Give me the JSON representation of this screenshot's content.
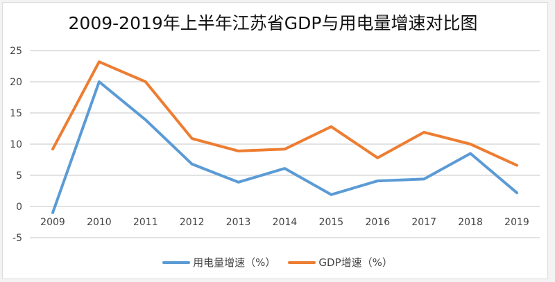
{
  "chart_data": {
    "type": "line",
    "title": "2009-2019年上半年江苏省GDP与用电量增速对比图",
    "xlabel": "",
    "ylabel": "",
    "categories": [
      "2009",
      "2010",
      "2011",
      "2012",
      "2013",
      "2014",
      "2015",
      "2016",
      "2017",
      "2018",
      "2019"
    ],
    "ylim": [
      -5,
      25
    ],
    "yticks": [
      "25",
      "20",
      "15",
      "10",
      "5",
      "0",
      "-5"
    ],
    "ytick_values": [
      25,
      20,
      15,
      10,
      5,
      0,
      -5
    ],
    "grid": true,
    "legend_position": "bottom",
    "series": [
      {
        "name": "用电量增速（%）",
        "color": "#5b9bd5",
        "values": [
          -1.0,
          20.0,
          13.9,
          6.8,
          3.9,
          6.1,
          1.9,
          4.1,
          4.4,
          8.5,
          2.2
        ]
      },
      {
        "name": "GDP增速（%）",
        "color": "#ed7d31",
        "values": [
          9.2,
          23.2,
          20.0,
          10.9,
          8.9,
          9.2,
          12.8,
          7.8,
          11.9,
          10.0,
          6.6
        ]
      }
    ]
  }
}
